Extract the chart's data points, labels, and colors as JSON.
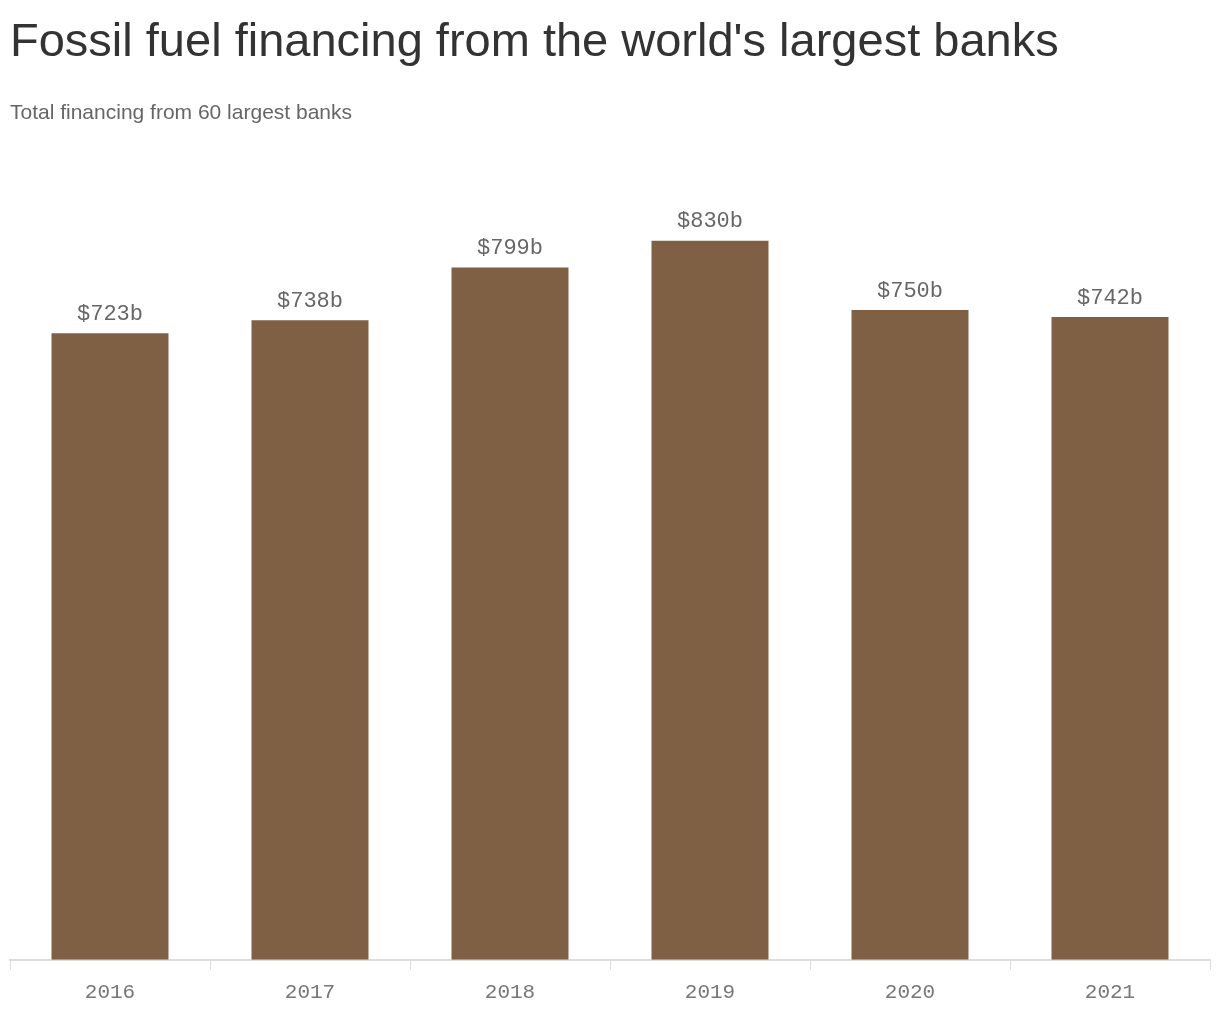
{
  "chart_data": {
    "type": "bar",
    "title": "Fossil fuel financing from the world's largest banks",
    "subtitle": "Total financing from 60 largest banks",
    "categories": [
      "2016",
      "2017",
      "2018",
      "2019",
      "2020",
      "2021"
    ],
    "values": [
      723,
      738,
      799,
      830,
      750,
      742
    ],
    "value_labels": [
      "$723b",
      "$738b",
      "$799b",
      "$830b",
      "$750b",
      "$742b"
    ],
    "color": "#7f6044"
  }
}
